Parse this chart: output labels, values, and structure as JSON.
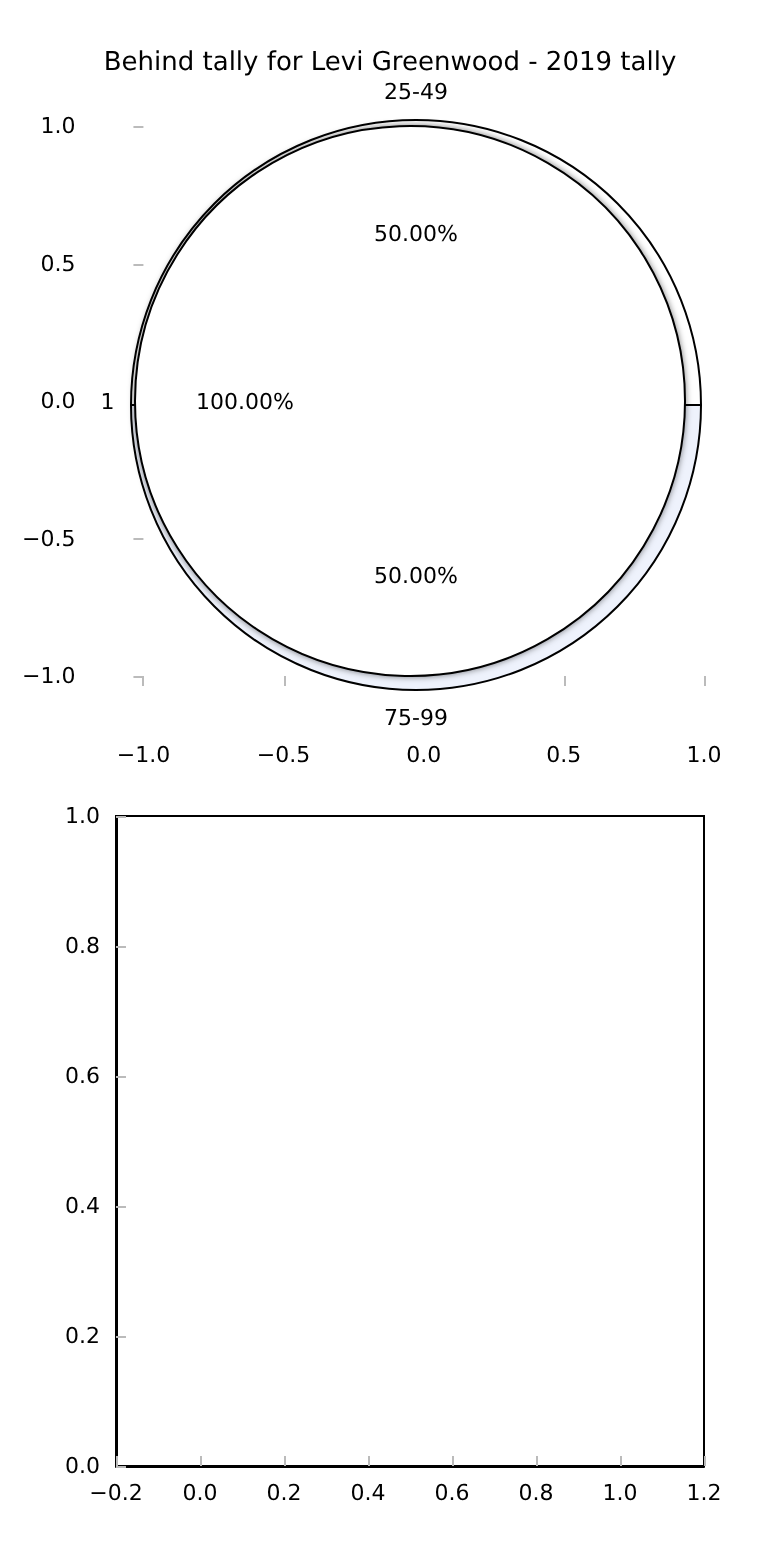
{
  "chart_data": [
    {
      "type": "scatter",
      "title": "Behind tally for Levi Greenwood - 2019 tally",
      "xlim": [
        -1,
        1
      ],
      "ylim": [
        -1,
        1
      ],
      "xticks": [
        {
          "value": -1,
          "label": "−1.0"
        },
        {
          "value": -0.5,
          "label": "−0.5"
        },
        {
          "value": 0,
          "label": "0.0"
        },
        {
          "value": 0.5,
          "label": "0.5"
        },
        {
          "value": 1,
          "label": "1.0"
        }
      ],
      "yticks": [
        {
          "value": -1,
          "label": "−1.0"
        },
        {
          "value": -0.5,
          "label": "−0.5"
        },
        {
          "value": 0,
          "label": "0.0"
        },
        {
          "value": 0.5,
          "label": "0.5"
        },
        {
          "value": 1,
          "label": "1.0"
        }
      ]
    },
    {
      "type": "pie",
      "categories": [
        "1"
      ],
      "values": [
        100
      ],
      "colors": [
        "#ffffff"
      ],
      "value_labels": [
        "100.00%"
      ]
    },
    {
      "type": "pie",
      "categories": [
        "25-49",
        "75-99"
      ],
      "values": [
        50,
        50
      ],
      "colors": [
        "#ffffff",
        "#eef2fc"
      ],
      "value_labels": [
        "50.00%",
        "50.00%"
      ]
    },
    {
      "type": "scatter",
      "xlim": [
        -0.2,
        1.2
      ],
      "ylim": [
        0,
        1
      ],
      "xticks": [
        {
          "value": -0.2,
          "label": "−0.2"
        },
        {
          "value": 0,
          "label": "0.0"
        },
        {
          "value": 0.2,
          "label": "0.2"
        },
        {
          "value": 0.4,
          "label": "0.4"
        },
        {
          "value": 0.6,
          "label": "0.6"
        },
        {
          "value": 0.8,
          "label": "0.8"
        },
        {
          "value": 1,
          "label": "1.0"
        },
        {
          "value": 1.2,
          "label": "1.2"
        }
      ],
      "yticks": [
        {
          "value": 0,
          "label": "0.0"
        },
        {
          "value": 0.2,
          "label": "0.2"
        },
        {
          "value": 0.4,
          "label": "0.4"
        },
        {
          "value": 0.6,
          "label": "0.6"
        },
        {
          "value": 0.8,
          "label": "0.8"
        },
        {
          "value": 1,
          "label": "1.0"
        }
      ]
    }
  ]
}
